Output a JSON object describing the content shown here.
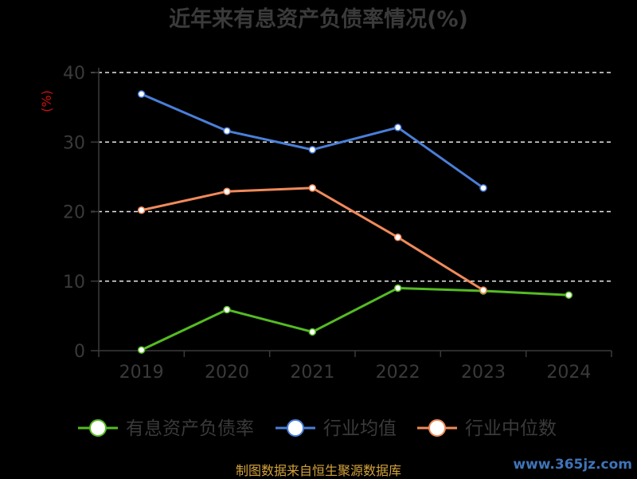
{
  "chart_data": {
    "type": "line",
    "title": "近年来有息资产负债率情况(%)",
    "ylabel": "(%)",
    "categories": [
      "2019",
      "2020",
      "2021",
      "2022",
      "2023",
      "2024"
    ],
    "ylim": [
      0,
      40
    ],
    "yticks": [
      "0",
      "10",
      "20",
      "30",
      "40"
    ],
    "grid": true,
    "legend_position": "bottom",
    "series": [
      {
        "name": "有息资产负债率",
        "color": "#55bb22",
        "values": [
          0.1,
          5.9,
          2.7,
          9.0,
          8.6,
          8.0
        ]
      },
      {
        "name": "行业均值",
        "color": "#4a7fd8",
        "values": [
          36.9,
          31.6,
          28.9,
          32.1,
          23.4,
          null
        ]
      },
      {
        "name": "行业中位数",
        "color": "#f08a5a",
        "values": [
          20.2,
          22.9,
          23.4,
          16.3,
          8.7,
          null
        ]
      }
    ]
  },
  "source": "制图数据来自恒生聚源数据库",
  "watermark": "www.365jz.com"
}
